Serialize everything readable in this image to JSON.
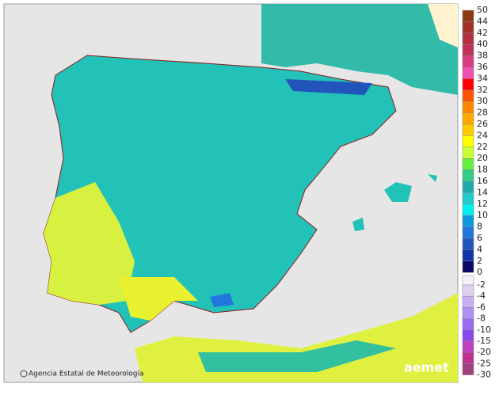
{
  "legend_high": {
    "labels": [
      50,
      44,
      42,
      40,
      38,
      36,
      34,
      32,
      30,
      28,
      26,
      24,
      22,
      20,
      18,
      16,
      14,
      12,
      10,
      8,
      6,
      4,
      2,
      0
    ],
    "colors": [
      "#8b3a12",
      "#a0302a",
      "#b03040",
      "#c03058",
      "#d83c80",
      "#f050b0",
      "#ff0000",
      "#ff5500",
      "#ff8800",
      "#ffaa00",
      "#ffcc00",
      "#ffff00",
      "#ccff33",
      "#66ee44",
      "#33cc88",
      "#22aaaa",
      "#22cccc",
      "#00eeee",
      "#1199dd",
      "#2277dd",
      "#2255bb",
      "#1133aa",
      "#0a0a66"
    ]
  },
  "legend_low": {
    "labels": [
      -2,
      -4,
      -6,
      -8,
      -10,
      -15,
      -20,
      -25,
      -30
    ],
    "colors": [
      "#e0d0f0",
      "#c8b0f0",
      "#b090f0",
      "#9a6cee",
      "#8a48e6",
      "#c040c0",
      "#c03090",
      "#a04080"
    ]
  },
  "footer": {
    "agency": "Agencia Estatal de Meteorología",
    "logo": "aemet"
  }
}
